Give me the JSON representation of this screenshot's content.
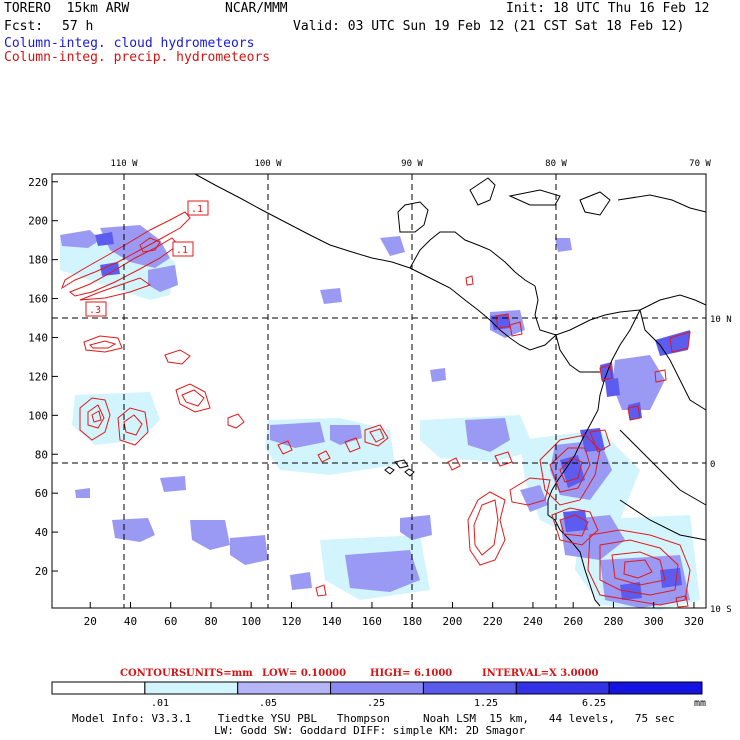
{
  "header": {
    "model": "TORERO  15km ARW",
    "org": "NCAR/MMM",
    "init": "Init: 18 UTC Thu 16 Feb 12",
    "fcst_label": "Fcst:",
    "fcst_value": "57 h",
    "valid": "Valid: 03 UTC Sun 19 Feb 12 (21 CST Sat 18 Feb 12)",
    "field_cloud": "Column-integ. cloud hydrometeors",
    "field_precip": "Column-integ. precip. hydrometeors"
  },
  "map": {
    "lon_labels": [
      "110 W",
      "100 W",
      "90 W",
      "80 W",
      "70 W"
    ],
    "lat_labels": [
      "10 N",
      "0",
      "10 S"
    ],
    "y_ticks": [
      20,
      40,
      60,
      80,
      100,
      120,
      140,
      160,
      180,
      200,
      220
    ],
    "x_ticks": [
      20,
      40,
      60,
      80,
      100,
      120,
      140,
      160,
      180,
      200,
      220,
      240,
      260,
      280,
      300,
      320
    ],
    "contour_labels": [
      ".1",
      ".1",
      ".3"
    ],
    "colors": {
      "cloud_fill": "#8f8ff5",
      "cloud_light": "#cfeefb",
      "cloud_mid": "#5c5cf0",
      "precip_contour": "#e01a1a",
      "coast": "#000000",
      "grid": "#000000"
    }
  },
  "contour_info": {
    "contours": "CONTOURS:",
    "units": "UNITS=mm",
    "low": "LOW= 0.10000",
    "high": "HIGH=  6.1000",
    "interval": "INTERVAL=X  3.0000"
  },
  "colorbar": {
    "labels": [
      ".01",
      ".05",
      ".25",
      "1.25",
      "6.25"
    ],
    "unit": "mm",
    "colors": [
      "#ffffff",
      "#d2f4fc",
      "#b4b4f7",
      "#8a8af2",
      "#5a5aeb",
      "#3232e6",
      "#1414e0"
    ]
  },
  "footer": {
    "line1": "Model Info: V3.3.1    Tiedtke YSU PBL   Thompson     Noah LSM  15 km,   44 levels,   75 sec",
    "line2": "LW: Godd SW: Goddard DIFF: simple KM: 2D Smagor"
  }
}
